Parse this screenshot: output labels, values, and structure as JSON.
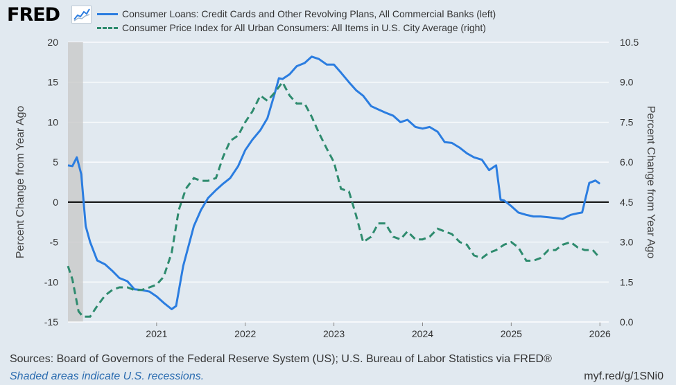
{
  "header": {
    "logo": "FRED",
    "logo_icon": "line-chart-icon"
  },
  "colors": {
    "series1": "#2b7de0",
    "series2": "#2e8b6e",
    "background": "#e1e9f0",
    "recession": "#c9c9c9",
    "link": "#2b6cb0"
  },
  "chart_data": {
    "type": "line",
    "x_ticks": [
      "2021",
      "2022",
      "2023",
      "2024",
      "2025",
      "2026"
    ],
    "x_range": [
      2020.0,
      2026.1
    ],
    "recession_shading": [
      [
        2020.0,
        2020.17
      ]
    ],
    "left_axis": {
      "label": "Percent Change from Year Ago",
      "range": [
        -15,
        20
      ],
      "ticks": [
        "20",
        "15",
        "10",
        "5",
        "0",
        "-5",
        "-10",
        "-15"
      ]
    },
    "right_axis": {
      "label": "Percent Change from Year Ago",
      "range": [
        0.0,
        10.5
      ],
      "ticks": [
        "10.5",
        "9.0",
        "7.5",
        "6.0",
        "4.5",
        "3.0",
        "1.5",
        "0.0"
      ]
    },
    "series": [
      {
        "name": "Consumer Loans: Credit Cards and Other Revolving Plans, All Commercial Banks (left)",
        "axis": "left",
        "style": "solid",
        "points": [
          [
            2020.0,
            4.6
          ],
          [
            2020.05,
            4.5
          ],
          [
            2020.1,
            5.6
          ],
          [
            2020.15,
            3.5
          ],
          [
            2020.2,
            -3.0
          ],
          [
            2020.25,
            -5.0
          ],
          [
            2020.33,
            -7.3
          ],
          [
            2020.42,
            -7.8
          ],
          [
            2020.5,
            -8.6
          ],
          [
            2020.58,
            -9.5
          ],
          [
            2020.67,
            -9.9
          ],
          [
            2020.75,
            -10.9
          ],
          [
            2020.83,
            -11.0
          ],
          [
            2020.92,
            -11.2
          ],
          [
            2021.0,
            -11.8
          ],
          [
            2021.08,
            -12.6
          ],
          [
            2021.17,
            -13.4
          ],
          [
            2021.22,
            -13.0
          ],
          [
            2021.3,
            -8.0
          ],
          [
            2021.42,
            -3.0
          ],
          [
            2021.5,
            -1.0
          ],
          [
            2021.58,
            0.5
          ],
          [
            2021.67,
            1.5
          ],
          [
            2021.75,
            2.3
          ],
          [
            2021.83,
            3.0
          ],
          [
            2021.92,
            4.5
          ],
          [
            2022.0,
            6.5
          ],
          [
            2022.08,
            7.8
          ],
          [
            2022.17,
            9.0
          ],
          [
            2022.25,
            10.5
          ],
          [
            2022.33,
            13.5
          ],
          [
            2022.38,
            15.5
          ],
          [
            2022.42,
            15.4
          ],
          [
            2022.5,
            16.0
          ],
          [
            2022.58,
            17.0
          ],
          [
            2022.67,
            17.4
          ],
          [
            2022.75,
            18.2
          ],
          [
            2022.83,
            17.9
          ],
          [
            2022.92,
            17.2
          ],
          [
            2023.0,
            17.2
          ],
          [
            2023.08,
            16.2
          ],
          [
            2023.17,
            15.0
          ],
          [
            2023.25,
            14.0
          ],
          [
            2023.33,
            13.3
          ],
          [
            2023.42,
            12.0
          ],
          [
            2023.5,
            11.6
          ],
          [
            2023.58,
            11.2
          ],
          [
            2023.67,
            10.8
          ],
          [
            2023.75,
            10.0
          ],
          [
            2023.83,
            10.3
          ],
          [
            2023.92,
            9.4
          ],
          [
            2024.0,
            9.2
          ],
          [
            2024.08,
            9.4
          ],
          [
            2024.17,
            8.8
          ],
          [
            2024.25,
            7.5
          ],
          [
            2024.33,
            7.4
          ],
          [
            2024.42,
            6.8
          ],
          [
            2024.5,
            6.1
          ],
          [
            2024.58,
            5.6
          ],
          [
            2024.67,
            5.3
          ],
          [
            2024.75,
            4.0
          ],
          [
            2024.83,
            4.6
          ],
          [
            2024.88,
            0.3
          ],
          [
            2024.92,
            0.2
          ],
          [
            2025.0,
            -0.5
          ],
          [
            2025.08,
            -1.3
          ],
          [
            2025.17,
            -1.6
          ],
          [
            2025.25,
            -1.8
          ],
          [
            2025.33,
            -1.8
          ],
          [
            2025.42,
            -1.9
          ],
          [
            2025.5,
            -2.0
          ],
          [
            2025.58,
            -2.1
          ],
          [
            2025.67,
            -1.6
          ],
          [
            2025.75,
            -1.4
          ],
          [
            2025.8,
            -1.3
          ],
          [
            2025.88,
            2.4
          ],
          [
            2025.95,
            2.7
          ],
          [
            2026.0,
            2.3
          ]
        ]
      },
      {
        "name": "Consumer Price Index for All Urban Consumers: All Items in U.S. City Average (right)",
        "axis": "right",
        "style": "dashed",
        "points": [
          [
            2020.0,
            2.1
          ],
          [
            2020.05,
            1.6
          ],
          [
            2020.12,
            0.4
          ],
          [
            2020.17,
            0.2
          ],
          [
            2020.25,
            0.2
          ],
          [
            2020.33,
            0.6
          ],
          [
            2020.42,
            1.0
          ],
          [
            2020.5,
            1.2
          ],
          [
            2020.58,
            1.3
          ],
          [
            2020.67,
            1.3
          ],
          [
            2020.75,
            1.2
          ],
          [
            2020.83,
            1.2
          ],
          [
            2020.92,
            1.3
          ],
          [
            2021.0,
            1.4
          ],
          [
            2021.08,
            1.7
          ],
          [
            2021.17,
            2.6
          ],
          [
            2021.25,
            4.2
          ],
          [
            2021.33,
            5.0
          ],
          [
            2021.42,
            5.4
          ],
          [
            2021.5,
            5.3
          ],
          [
            2021.58,
            5.3
          ],
          [
            2021.67,
            5.4
          ],
          [
            2021.75,
            6.2
          ],
          [
            2021.83,
            6.8
          ],
          [
            2021.92,
            7.0
          ],
          [
            2022.0,
            7.5
          ],
          [
            2022.08,
            7.9
          ],
          [
            2022.17,
            8.5
          ],
          [
            2022.25,
            8.3
          ],
          [
            2022.33,
            8.6
          ],
          [
            2022.42,
            9.0
          ],
          [
            2022.5,
            8.5
          ],
          [
            2022.58,
            8.2
          ],
          [
            2022.67,
            8.2
          ],
          [
            2022.75,
            7.7
          ],
          [
            2022.83,
            7.1
          ],
          [
            2022.92,
            6.5
          ],
          [
            2023.0,
            6.0
          ],
          [
            2023.08,
            5.0
          ],
          [
            2023.17,
            4.9
          ],
          [
            2023.25,
            4.0
          ],
          [
            2023.33,
            3.0
          ],
          [
            2023.42,
            3.2
          ],
          [
            2023.5,
            3.7
          ],
          [
            2023.58,
            3.7
          ],
          [
            2023.67,
            3.2
          ],
          [
            2023.75,
            3.1
          ],
          [
            2023.83,
            3.4
          ],
          [
            2023.92,
            3.1
          ],
          [
            2024.0,
            3.1
          ],
          [
            2024.08,
            3.2
          ],
          [
            2024.17,
            3.5
          ],
          [
            2024.25,
            3.4
          ],
          [
            2024.33,
            3.3
          ],
          [
            2024.42,
            3.0
          ],
          [
            2024.5,
            2.9
          ],
          [
            2024.58,
            2.5
          ],
          [
            2024.67,
            2.4
          ],
          [
            2024.75,
            2.6
          ],
          [
            2024.83,
            2.7
          ],
          [
            2024.92,
            2.9
          ],
          [
            2025.0,
            3.0
          ],
          [
            2025.08,
            2.8
          ],
          [
            2025.17,
            2.3
          ],
          [
            2025.25,
            2.3
          ],
          [
            2025.33,
            2.4
          ],
          [
            2025.42,
            2.7
          ],
          [
            2025.5,
            2.7
          ],
          [
            2025.58,
            2.9
          ],
          [
            2025.67,
            3.0
          ],
          [
            2025.75,
            2.8
          ],
          [
            2025.83,
            2.7
          ],
          [
            2025.92,
            2.7
          ],
          [
            2026.0,
            2.4
          ]
        ]
      }
    ]
  },
  "footer": {
    "sources": "Sources: Board of Governors of the Federal Reserve System (US); U.S. Bureau of Labor Statistics via FRED®",
    "shaded_note": "Shaded areas indicate U.S. recessions.",
    "short_url": "myf.red/g/1SNi0"
  }
}
